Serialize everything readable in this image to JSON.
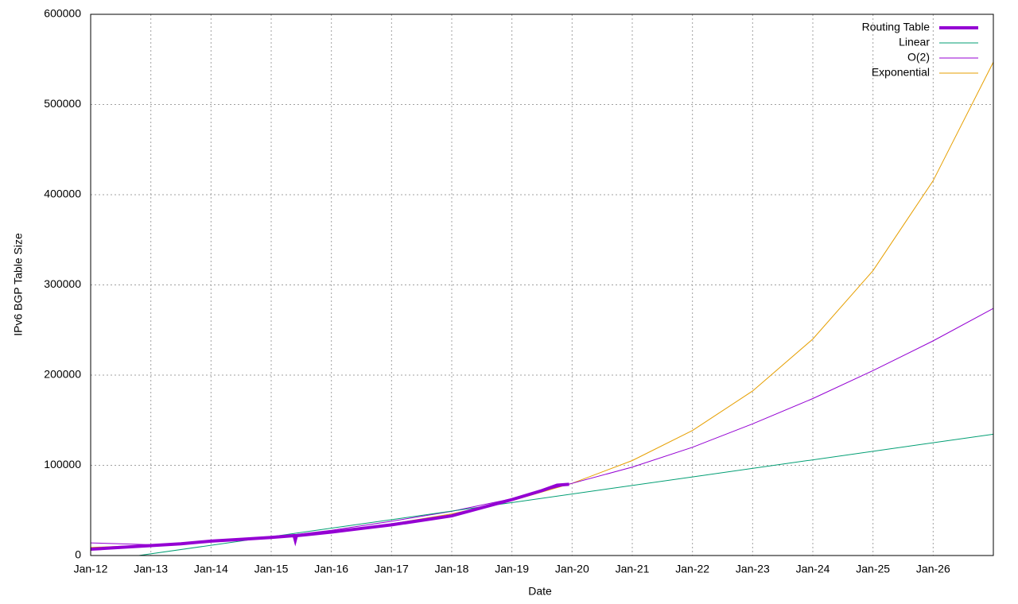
{
  "chart_data": {
    "type": "line",
    "x_label": "Date",
    "y_label": "IPv6 BGP Table Size",
    "xlim": [
      2012,
      2027
    ],
    "ylim": [
      0,
      600000
    ],
    "xticks": [
      {
        "value": 2012,
        "label": "Jan-12"
      },
      {
        "value": 2013,
        "label": "Jan-13"
      },
      {
        "value": 2014,
        "label": "Jan-14"
      },
      {
        "value": 2015,
        "label": "Jan-15"
      },
      {
        "value": 2016,
        "label": "Jan-16"
      },
      {
        "value": 2017,
        "label": "Jan-17"
      },
      {
        "value": 2018,
        "label": "Jan-18"
      },
      {
        "value": 2019,
        "label": "Jan-19"
      },
      {
        "value": 2020,
        "label": "Jan-20"
      },
      {
        "value": 2021,
        "label": "Jan-21"
      },
      {
        "value": 2022,
        "label": "Jan-22"
      },
      {
        "value": 2023,
        "label": "Jan-23"
      },
      {
        "value": 2024,
        "label": "Jan-24"
      },
      {
        "value": 2025,
        "label": "Jan-25"
      },
      {
        "value": 2026,
        "label": "Jan-26"
      }
    ],
    "yticks": [
      0,
      100000,
      200000,
      300000,
      400000,
      500000,
      600000
    ],
    "grid": true,
    "legend": "top-right",
    "series": [
      {
        "name": "Routing Table",
        "color": "#9400d3",
        "line_width": 4,
        "x": [
          2012,
          2012.5,
          2013,
          2013.5,
          2014,
          2014.5,
          2015,
          2015.38,
          2015.4,
          2015.42,
          2016,
          2016.5,
          2017,
          2017.5,
          2018,
          2018.5,
          2019,
          2019.5,
          2019.75,
          2019.95
        ],
        "values": [
          7000,
          9000,
          11000,
          13000,
          16000,
          18000,
          20000,
          22000,
          17000,
          22000,
          26000,
          30000,
          34000,
          39000,
          44000,
          53000,
          62000,
          72000,
          78000,
          79000
        ]
      },
      {
        "name": "Linear",
        "color": "#009e73",
        "line_width": 1,
        "x": [
          2012.8,
          2027
        ],
        "values": [
          0,
          134500
        ]
      },
      {
        "name": "O(2)",
        "color": "#9400d3",
        "line_width": 1,
        "x": [
          2012,
          2013,
          2014,
          2015,
          2016,
          2017,
          2018,
          2019,
          2020,
          2021,
          2022,
          2023,
          2024,
          2025,
          2026,
          2027
        ],
        "values": [
          14000,
          12000,
          15000,
          20000,
          28000,
          38000,
          49000,
          63000,
          80000,
          98000,
          120000,
          146000,
          174000,
          205000,
          238000,
          274000
        ]
      },
      {
        "name": "Exponential",
        "color": "#e69f00",
        "line_width": 1,
        "x": [
          2012,
          2013,
          2014,
          2015,
          2016,
          2017,
          2018,
          2019,
          2020,
          2021,
          2022,
          2023,
          2024,
          2025,
          2026,
          2027
        ],
        "values": [
          8900,
          11700,
          15400,
          20300,
          26700,
          35100,
          46200,
          60800,
          80000,
          105300,
          138600,
          182400,
          240000,
          315800,
          415600,
          547000
        ]
      }
    ]
  }
}
